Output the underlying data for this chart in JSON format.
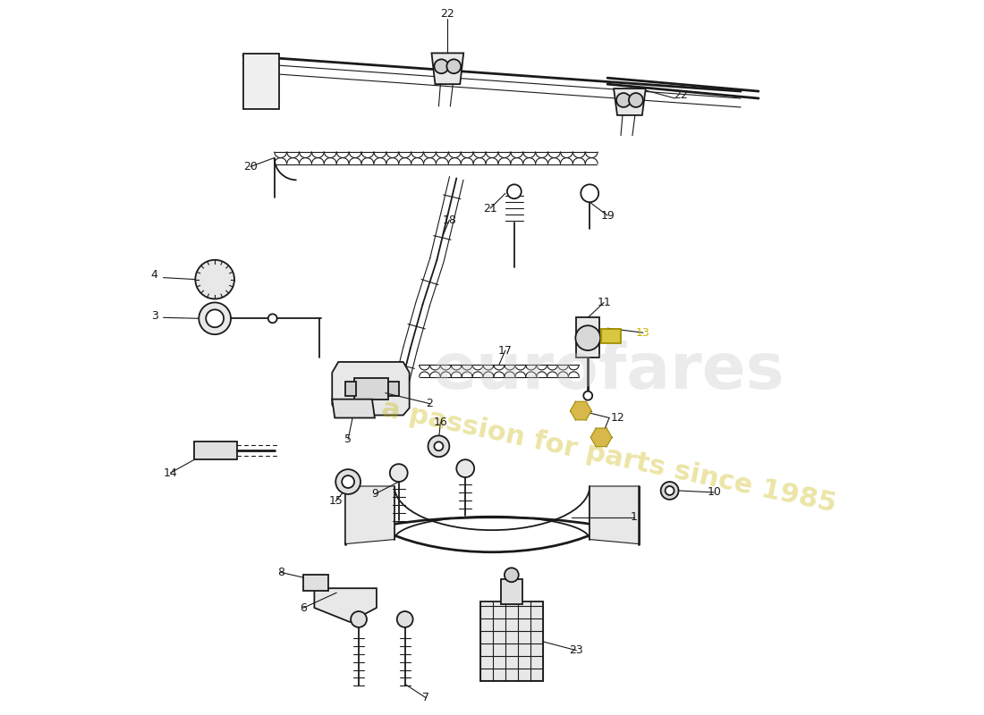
{
  "background_color": "#ffffff",
  "line_color": "#1a1a1a",
  "label_color": "#1a1a1a",
  "highlight_color": "#c8b400",
  "fig_width": 11.0,
  "fig_height": 8.0,
  "dpi": 100
}
